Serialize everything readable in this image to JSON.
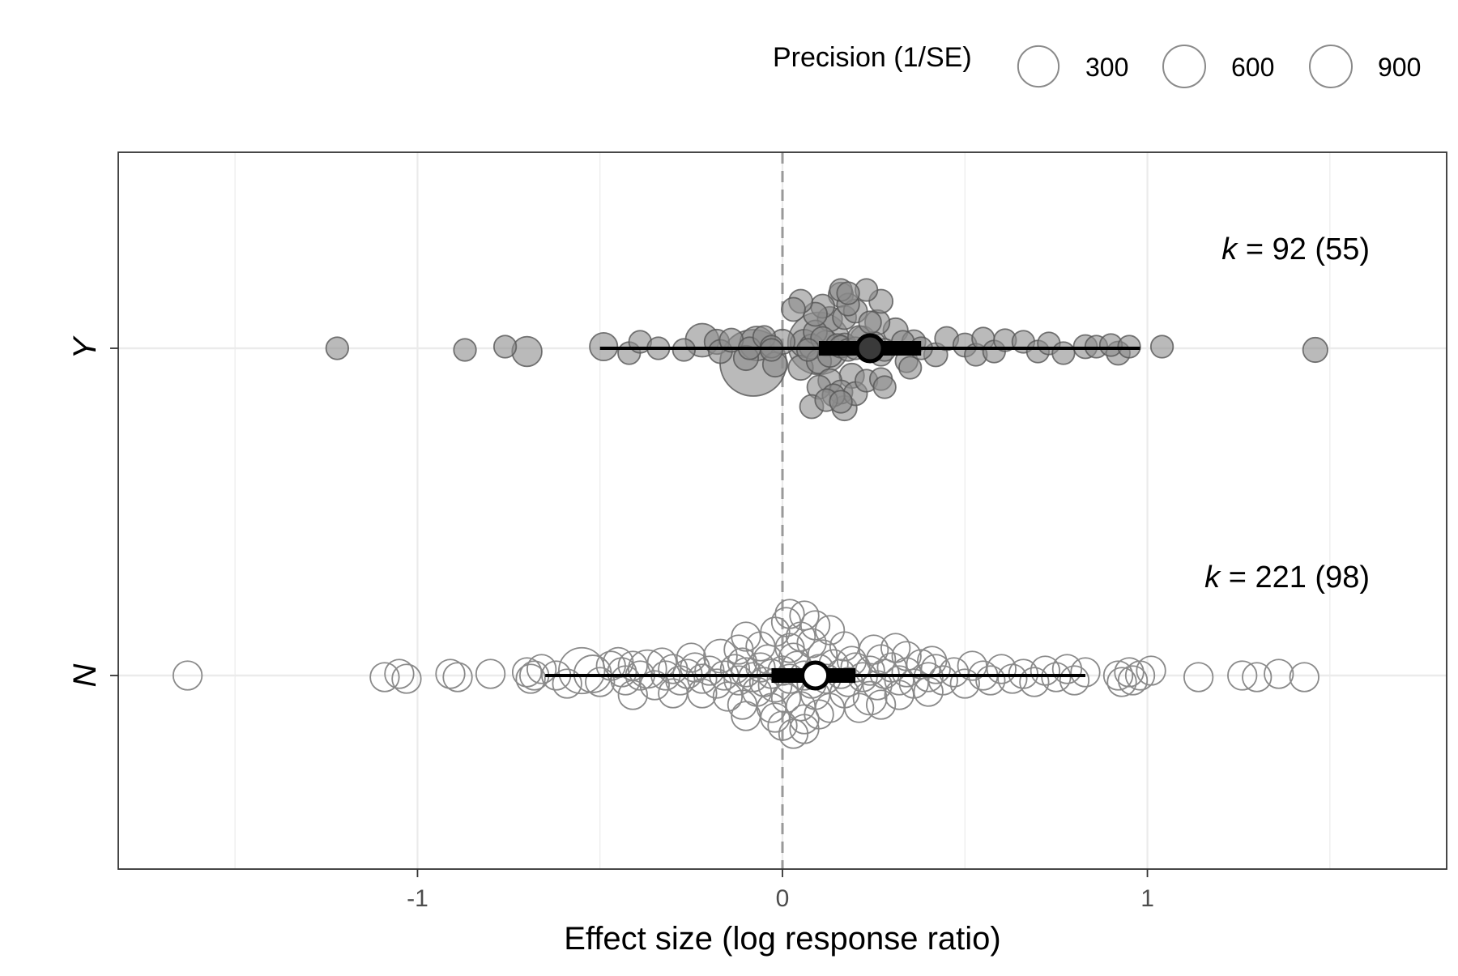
{
  "chart_data": {
    "type": "scatter",
    "subtype": "orchard plot",
    "xlabel": "Effect size (log response ratio)",
    "ylabel": "",
    "xlim": [
      -1.82,
      1.82
    ],
    "x_ticks": [
      -1,
      0,
      1
    ],
    "x_tick_labels": [
      "-1",
      "0",
      "1"
    ],
    "categories": [
      "Y",
      "N"
    ],
    "grid": true,
    "reference_line_x": 0,
    "legend": {
      "title": "Precision (1/SE)",
      "placement": "top-right",
      "entries": [
        {
          "label": "300",
          "value": 300
        },
        {
          "label": "600",
          "value": 600
        },
        {
          "label": "900",
          "value": 900
        }
      ]
    },
    "groups": [
      {
        "category": "Y",
        "k_label": "k",
        "k_text": " = 92 (55)",
        "fill_color": "#8c8c8c",
        "estimate": 0.24,
        "ci": [
          0.1,
          0.38
        ],
        "pi": [
          -0.5,
          0.98
        ],
        "points": [
          [
            -1.22,
            0,
            90
          ],
          [
            -0.87,
            -0.01,
            90
          ],
          [
            -0.76,
            0.01,
            90
          ],
          [
            -0.7,
            -0.02,
            160
          ],
          [
            -0.49,
            0.01,
            140
          ],
          [
            -0.42,
            -0.03,
            90
          ],
          [
            -0.39,
            0.04,
            90
          ],
          [
            -0.34,
            0.0,
            90
          ],
          [
            -0.27,
            -0.01,
            90
          ],
          [
            -0.22,
            0.05,
            200
          ],
          [
            -0.18,
            0.04,
            110
          ],
          [
            -0.17,
            -0.02,
            100
          ],
          [
            -0.14,
            0.05,
            100
          ],
          [
            -0.1,
            -0.06,
            110
          ],
          [
            -0.09,
            0.0,
            90
          ],
          [
            -0.07,
            0.03,
            210
          ],
          [
            -0.05,
            0.07,
            90
          ],
          [
            -0.03,
            0.01,
            90
          ],
          [
            -0.03,
            -0.01,
            90
          ],
          [
            -0.02,
            -0.1,
            110
          ],
          [
            0.0,
            0.04,
            110
          ],
          [
            0.05,
            -0.12,
            110
          ],
          [
            0.06,
            0.03,
            140
          ],
          [
            0.07,
            -0.01,
            90
          ],
          [
            0.08,
            0.01,
            110
          ],
          [
            0.09,
            0.1,
            100
          ],
          [
            0.1,
            -0.08,
            110
          ],
          [
            0.11,
            0.06,
            100
          ],
          [
            0.12,
            0.03,
            120
          ],
          [
            0.13,
            -0.04,
            110
          ],
          [
            0.15,
            0.02,
            90
          ],
          [
            0.16,
            0.01,
            90
          ],
          [
            0.17,
            0.02,
            100
          ],
          [
            0.18,
            -0.01,
            90
          ],
          [
            0.2,
            0.0,
            90
          ],
          [
            0.21,
            0.07,
            90
          ],
          [
            0.22,
            0.06,
            110
          ],
          [
            0.25,
            0.03,
            100
          ],
          [
            0.27,
            -0.04,
            90
          ],
          [
            0.28,
            -0.01,
            90
          ],
          [
            0.31,
            0.11,
            110
          ],
          [
            0.33,
            0.04,
            90
          ],
          [
            0.34,
            -0.08,
            90
          ],
          [
            0.35,
            -0.12,
            90
          ],
          [
            0.36,
            0.04,
            100
          ],
          [
            0.38,
            0.0,
            90
          ],
          [
            0.42,
            -0.04,
            100
          ],
          [
            0.45,
            0.06,
            100
          ],
          [
            0.5,
            0.02,
            100
          ],
          [
            0.53,
            -0.04,
            90
          ],
          [
            0.55,
            0.06,
            90
          ],
          [
            0.58,
            -0.02,
            90
          ],
          [
            0.61,
            0.05,
            90
          ],
          [
            0.66,
            0.04,
            90
          ],
          [
            0.7,
            -0.02,
            90
          ],
          [
            0.73,
            0.03,
            90
          ],
          [
            0.77,
            -0.03,
            90
          ],
          [
            0.83,
            0.01,
            100
          ],
          [
            0.86,
            0.01,
            90
          ],
          [
            0.9,
            0.02,
            90
          ],
          [
            0.92,
            -0.03,
            100
          ],
          [
            0.95,
            0.01,
            90
          ],
          [
            1.04,
            0.01,
            90
          ],
          [
            1.46,
            -0.01,
            110
          ],
          [
            0.13,
            0.18,
            110
          ],
          [
            0.17,
            0.19,
            100
          ],
          [
            0.24,
            0.16,
            90
          ],
          [
            0.26,
            0.16,
            110
          ],
          [
            0.2,
            0.23,
            100
          ],
          [
            0.18,
            0.27,
            90
          ],
          [
            0.16,
            0.33,
            110
          ],
          [
            0.27,
            0.29,
            100
          ],
          [
            0.16,
            0.36,
            90
          ],
          [
            0.23,
            0.36,
            90
          ],
          [
            0.18,
            0.34,
            90
          ],
          [
            0.11,
            0.26,
            100
          ],
          [
            0.09,
            0.21,
            100
          ],
          [
            0.05,
            0.29,
            100
          ],
          [
            0.03,
            0.24,
            100
          ],
          [
            0.13,
            -0.2,
            100
          ],
          [
            0.19,
            -0.17,
            110
          ],
          [
            0.23,
            -0.2,
            90
          ],
          [
            0.27,
            -0.19,
            90
          ],
          [
            0.1,
            -0.24,
            100
          ],
          [
            0.16,
            -0.27,
            100
          ],
          [
            0.2,
            -0.28,
            100
          ],
          [
            0.14,
            -0.29,
            90
          ],
          [
            0.12,
            -0.32,
            90
          ],
          [
            0.16,
            -0.33,
            90
          ],
          [
            0.08,
            -0.36,
            100
          ],
          [
            0.17,
            -0.37,
            110
          ],
          [
            0.28,
            -0.24,
            90
          ],
          [
            0.1,
            0.03,
            700
          ],
          [
            -0.08,
            -0.09,
            800
          ]
        ]
      },
      {
        "category": "N",
        "k_label": "k",
        "k_text": " = 221 (98)",
        "fill_color": "#ffffff",
        "estimate": 0.09,
        "ci": [
          -0.03,
          0.2
        ],
        "pi": [
          -0.65,
          0.83
        ],
        "points": [
          [
            -1.63,
            0,
            150
          ],
          [
            -1.09,
            -0.01,
            150
          ],
          [
            -1.05,
            0.01,
            150
          ],
          [
            -1.03,
            -0.02,
            150
          ],
          [
            -0.91,
            0.01,
            150
          ],
          [
            -0.89,
            -0.01,
            150
          ],
          [
            -0.8,
            0.01,
            150
          ],
          [
            -0.7,
            0.02,
            150
          ],
          [
            -0.69,
            -0.02,
            150
          ],
          [
            -0.68,
            0.0,
            150
          ],
          [
            -0.66,
            0.04,
            150
          ],
          [
            -0.62,
            0.0,
            150
          ],
          [
            -0.59,
            -0.05,
            150
          ],
          [
            -0.55,
            0.03,
            380
          ],
          [
            -0.52,
            0.01,
            250
          ],
          [
            -0.5,
            -0.04,
            150
          ],
          [
            -0.47,
            0.06,
            150
          ],
          [
            -0.44,
            0.02,
            150
          ],
          [
            -0.43,
            -0.03,
            150
          ],
          [
            -0.41,
            0.06,
            150
          ],
          [
            -0.39,
            0.0,
            150
          ],
          [
            -0.37,
            0.04,
            260
          ],
          [
            -0.35,
            -0.06,
            150
          ],
          [
            -0.32,
            0.0,
            150
          ],
          [
            -0.3,
            0.04,
            150
          ],
          [
            -0.28,
            -0.03,
            150
          ],
          [
            -0.26,
            0.01,
            150
          ],
          [
            -0.24,
            0.05,
            150
          ],
          [
            -0.22,
            -0.02,
            150
          ],
          [
            -0.2,
            0.03,
            150
          ],
          [
            -0.18,
            -0.05,
            150
          ],
          [
            -0.16,
            0.0,
            150
          ],
          [
            -0.13,
            0.04,
            150
          ],
          [
            -0.12,
            -0.03,
            150
          ],
          [
            -0.1,
            0.02,
            150
          ],
          [
            -0.08,
            -0.01,
            150
          ],
          [
            -0.06,
            0.05,
            150
          ],
          [
            -0.05,
            -0.04,
            150
          ],
          [
            -0.03,
            0.01,
            150
          ],
          [
            -0.02,
            -0.06,
            200
          ],
          [
            0.0,
            0.03,
            150
          ],
          [
            0.02,
            -0.02,
            150
          ],
          [
            0.04,
            0.06,
            150
          ],
          [
            0.06,
            0.0,
            150
          ],
          [
            0.08,
            -0.05,
            150
          ],
          [
            0.1,
            0.04,
            150
          ],
          [
            0.12,
            -0.02,
            150
          ],
          [
            0.14,
            0.07,
            150
          ],
          [
            0.16,
            0.01,
            150
          ],
          [
            0.18,
            -0.04,
            150
          ],
          [
            0.2,
            0.05,
            150
          ],
          [
            0.22,
            -0.01,
            150
          ],
          [
            0.24,
            0.03,
            150
          ],
          [
            0.26,
            -0.06,
            150
          ],
          [
            0.28,
            0.01,
            150
          ],
          [
            0.3,
            0.05,
            150
          ],
          [
            0.32,
            -0.03,
            150
          ],
          [
            0.34,
            0.02,
            150
          ],
          [
            0.36,
            -0.05,
            150
          ],
          [
            0.38,
            0.07,
            150
          ],
          [
            0.4,
            -0.01,
            150
          ],
          [
            0.42,
            0.04,
            150
          ],
          [
            0.44,
            -0.03,
            150
          ],
          [
            0.47,
            0.02,
            150
          ],
          [
            0.5,
            -0.05,
            150
          ],
          [
            0.52,
            0.06,
            150
          ],
          [
            0.55,
            0.0,
            150
          ],
          [
            0.57,
            -0.03,
            150
          ],
          [
            0.6,
            0.04,
            150
          ],
          [
            0.63,
            -0.02,
            150
          ],
          [
            0.66,
            0.01,
            150
          ],
          [
            0.69,
            -0.04,
            150
          ],
          [
            0.72,
            0.03,
            150
          ],
          [
            0.75,
            -0.01,
            150
          ],
          [
            0.78,
            0.04,
            150
          ],
          [
            0.8,
            -0.03,
            150
          ],
          [
            0.83,
            0.02,
            150
          ],
          [
            0.92,
            0.0,
            150
          ],
          [
            0.93,
            -0.04,
            150
          ],
          [
            0.95,
            0.02,
            150
          ],
          [
            0.96,
            -0.03,
            150
          ],
          [
            0.98,
            0.0,
            150
          ],
          [
            1.01,
            0.03,
            150
          ],
          [
            1.14,
            -0.01,
            150
          ],
          [
            1.26,
            0.0,
            150
          ],
          [
            1.3,
            -0.01,
            150
          ],
          [
            1.36,
            0.01,
            150
          ],
          [
            1.43,
            -0.01,
            150
          ],
          [
            -0.45,
            0.08,
            160
          ],
          [
            -0.33,
            0.08,
            150
          ],
          [
            -0.25,
            0.11,
            150
          ],
          [
            -0.17,
            0.12,
            200
          ],
          [
            -0.11,
            0.08,
            150
          ],
          [
            -0.04,
            0.1,
            150
          ],
          [
            0.03,
            0.11,
            150
          ],
          [
            0.11,
            0.13,
            150
          ],
          [
            0.19,
            0.09,
            150
          ],
          [
            0.27,
            0.1,
            150
          ],
          [
            0.34,
            0.12,
            150
          ],
          [
            0.41,
            0.09,
            150
          ],
          [
            -0.12,
            0.16,
            150
          ],
          [
            -0.06,
            0.18,
            150
          ],
          [
            0.02,
            0.17,
            150
          ],
          [
            0.08,
            0.2,
            150
          ],
          [
            0.17,
            0.18,
            150
          ],
          [
            0.25,
            0.16,
            150
          ],
          [
            0.31,
            0.17,
            150
          ],
          [
            -0.1,
            0.24,
            150
          ],
          [
            -0.02,
            0.27,
            150
          ],
          [
            0.05,
            0.24,
            150
          ],
          [
            0.13,
            0.28,
            150
          ],
          [
            0.01,
            0.33,
            150
          ],
          [
            0.09,
            0.31,
            150
          ],
          [
            0.06,
            0.37,
            150
          ],
          [
            0.02,
            0.38,
            150
          ],
          [
            0.03,
            -0.36,
            150
          ],
          [
            -0.41,
            -0.12,
            150
          ],
          [
            -0.3,
            -0.11,
            150
          ],
          [
            -0.22,
            -0.11,
            150
          ],
          [
            -0.15,
            -0.13,
            150
          ],
          [
            -0.07,
            -0.1,
            150
          ],
          [
            0.01,
            -0.14,
            150
          ],
          [
            0.09,
            -0.12,
            150
          ],
          [
            0.17,
            -0.11,
            150
          ],
          [
            0.24,
            -0.14,
            200
          ],
          [
            0.32,
            -0.12,
            150
          ],
          [
            0.4,
            -0.1,
            150
          ],
          [
            -0.11,
            -0.18,
            150
          ],
          [
            -0.03,
            -0.2,
            150
          ],
          [
            0.05,
            -0.19,
            150
          ],
          [
            0.13,
            -0.2,
            150
          ],
          [
            0.21,
            -0.2,
            150
          ],
          [
            0.27,
            -0.18,
            150
          ],
          [
            -0.1,
            -0.25,
            150
          ],
          [
            -0.02,
            -0.26,
            150
          ],
          [
            0.06,
            -0.27,
            150
          ],
          [
            0.1,
            -0.24,
            150
          ],
          [
            0.0,
            -0.31,
            150
          ],
          [
            0.06,
            -0.33,
            150
          ]
        ]
      }
    ]
  }
}
